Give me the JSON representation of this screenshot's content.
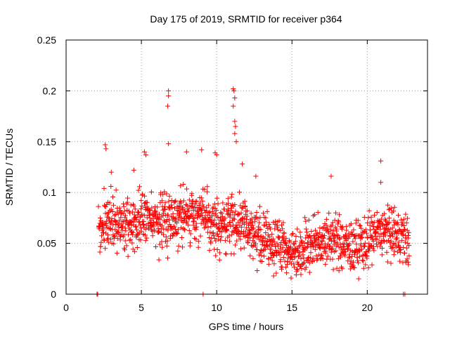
{
  "chart_data": {
    "type": "scatter",
    "title": "Day 175 of 2019, SRMTID for receiver p364",
    "xlabel": "GPS time / hours",
    "ylabel": "SRMTID / TECUs",
    "xlim": [
      0,
      24
    ],
    "ylim": [
      0,
      0.25
    ],
    "x_ticks": [
      0,
      5,
      10,
      15,
      20
    ],
    "y_ticks": [
      0,
      0.05,
      0.1,
      0.15,
      0.2,
      0.25
    ],
    "x_tick_labels": [
      "0",
      "5",
      "10",
      "15",
      "20"
    ],
    "y_tick_labels": [
      "0",
      "0.05",
      "0.1",
      "0.15",
      "0.2",
      "0.25"
    ],
    "grid": true,
    "marker": "+",
    "series_color": "#ff0000",
    "trend": [
      {
        "x": 2.0,
        "y": 0.062
      },
      {
        "x": 3.0,
        "y": 0.075
      },
      {
        "x": 4.0,
        "y": 0.063
      },
      {
        "x": 5.0,
        "y": 0.076
      },
      {
        "x": 6.0,
        "y": 0.072
      },
      {
        "x": 7.0,
        "y": 0.074
      },
      {
        "x": 8.0,
        "y": 0.078
      },
      {
        "x": 9.0,
        "y": 0.079
      },
      {
        "x": 10.0,
        "y": 0.065
      },
      {
        "x": 11.0,
        "y": 0.073
      },
      {
        "x": 12.0,
        "y": 0.068
      },
      {
        "x": 13.0,
        "y": 0.053
      },
      {
        "x": 14.0,
        "y": 0.05
      },
      {
        "x": 15.0,
        "y": 0.04
      },
      {
        "x": 16.0,
        "y": 0.047
      },
      {
        "x": 17.0,
        "y": 0.054
      },
      {
        "x": 18.0,
        "y": 0.052
      },
      {
        "x": 19.0,
        "y": 0.045
      },
      {
        "x": 20.0,
        "y": 0.052
      },
      {
        "x": 21.0,
        "y": 0.062
      },
      {
        "x": 22.0,
        "y": 0.057
      },
      {
        "x": 22.8,
        "y": 0.052
      }
    ],
    "spread": 0.018,
    "points_per_hour": 70,
    "outliers": [
      {
        "x": 2.05,
        "y": 0.0
      },
      {
        "x": 2.1,
        "y": 0.0
      },
      {
        "x": 9.1,
        "y": 0.0
      },
      {
        "x": 22.4,
        "y": 0.0
      },
      {
        "x": 22.5,
        "y": 0.0
      },
      {
        "x": 6.8,
        "y": 0.2
      },
      {
        "x": 6.8,
        "y": 0.195
      },
      {
        "x": 6.75,
        "y": 0.185
      },
      {
        "x": 6.8,
        "y": 0.148
      },
      {
        "x": 11.1,
        "y": 0.202
      },
      {
        "x": 11.15,
        "y": 0.2
      },
      {
        "x": 11.2,
        "y": 0.193
      },
      {
        "x": 11.1,
        "y": 0.185
      },
      {
        "x": 11.2,
        "y": 0.17
      },
      {
        "x": 11.25,
        "y": 0.165
      },
      {
        "x": 11.2,
        "y": 0.158
      },
      {
        "x": 11.3,
        "y": 0.15
      },
      {
        "x": 2.6,
        "y": 0.147
      },
      {
        "x": 2.65,
        "y": 0.143
      },
      {
        "x": 5.2,
        "y": 0.14
      },
      {
        "x": 5.3,
        "y": 0.137
      },
      {
        "x": 9.0,
        "y": 0.142
      },
      {
        "x": 9.9,
        "y": 0.139
      },
      {
        "x": 10.0,
        "y": 0.137
      },
      {
        "x": 8.0,
        "y": 0.14
      },
      {
        "x": 11.7,
        "y": 0.128
      },
      {
        "x": 20.9,
        "y": 0.131
      },
      {
        "x": 3.0,
        "y": 0.12
      },
      {
        "x": 4.5,
        "y": 0.122
      },
      {
        "x": 12.6,
        "y": 0.116
      },
      {
        "x": 17.6,
        "y": 0.116
      },
      {
        "x": 20.9,
        "y": 0.11
      }
    ]
  }
}
